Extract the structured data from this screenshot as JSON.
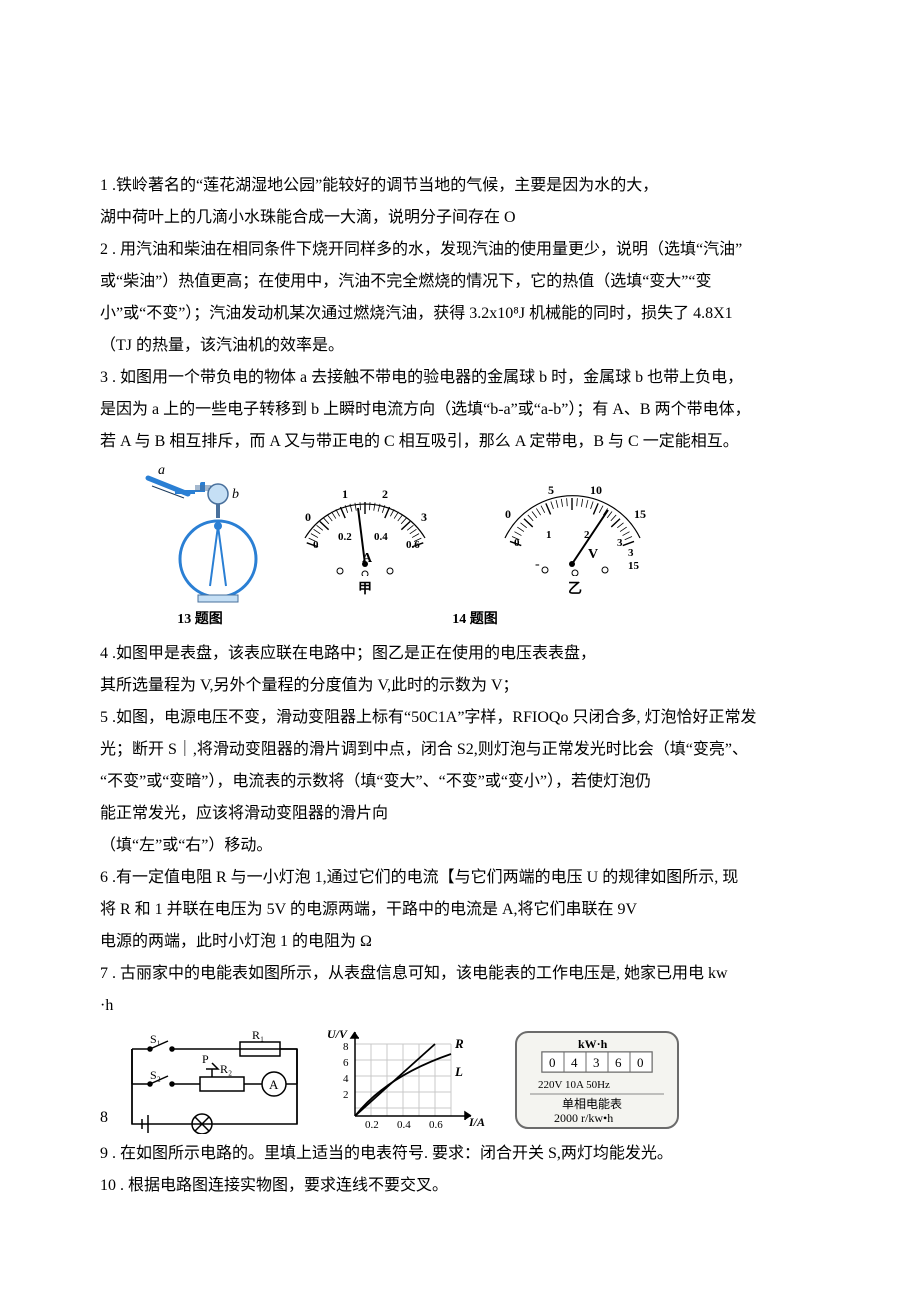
{
  "q1": {
    "line1": "1 .铁岭著名的“莲花湖湿地公园”能较好的调节当地的气候，主要是因为水的大，",
    "line2": "湖中荷叶上的几滴小水珠能合成一大滴，说明分子间存在 O"
  },
  "q2": {
    "line1": "2 . 用汽油和柴油在相同条件下烧开同样多的水，发现汽油的使用量更少，说明（选填“汽油”",
    "line2": "或“柴油”）热值更高；在使用中，汽油不完全燃烧的情况下，它的热值（选填“变大”“变",
    "line3": "小”或“不变”）；汽油发动机某次通过燃烧汽油，获得 3.2x10⁸J 机械能的同时，损失了 4.8X1",
    "line4": "（TJ 的热量，该汽油机的效率是。"
  },
  "q3": {
    "line1": "3 . 如图用一个带负电的物体 a 去接触不带电的验电器的金属球 b 时，金属球 b 也带上负电，",
    "line2": "是因为 a 上的一些电子转移到 b 上瞬时电流方向（选填“b-a”或“a-b”）；有 A、B 两个带电体，",
    "line3": "若 A 与 B 相互排斥，而 A 又与带正电的 C 相互吸引，那么 A 定带电，B 与 C 一定能相互。"
  },
  "fig1": {
    "cap13": "13 题图",
    "cap14": "14 题图",
    "label_jia": "甲",
    "label_yi": "乙",
    "a_label": "a",
    "b_label": "b",
    "ammeter": {
      "scale1": [
        "0",
        "1",
        "2",
        "3"
      ],
      "scale2": [
        "0",
        "0.2",
        "0.4",
        "0.6"
      ],
      "unit": "A"
    },
    "voltmeter": {
      "scale1": [
        "0",
        "5",
        "10",
        "15"
      ],
      "scale2": [
        "0",
        "1",
        "2",
        "3"
      ],
      "unit": "V",
      "side": [
        "3",
        "15"
      ]
    },
    "colors": {
      "blue": "#2a7fd4",
      "outline": "#49709c",
      "body": "#c5dff5",
      "needle": "#1b3a5c"
    }
  },
  "q4": {
    "line1": "4 .如图甲是表盘，该表应联在电路中；图乙是正在使用的电压表表盘，",
    "line2": "其所选量程为 V,另外个量程的分度值为 V,此时的示数为 V；"
  },
  "q5": {
    "line1": "5 .如图，电源电压不变，滑动变阻器上标有“50C1A”字样，RFIOQo 只闭合多, 灯泡恰好正常发",
    "line2": "光；断开 S｜,将滑动变阻器的滑片调到中点，闭合 S2,则灯泡与正常发光时比会（填“变亮”、",
    "line3": "“不变”或“变暗”），电流表的示数将（填“变大”、“不变”或“变小”），若使灯泡仍",
    "line4": "能正常发光，应该将滑动变阻器的滑片向",
    "line5": "（填“左”或“右”）移动。"
  },
  "q6": {
    "line1": "6 .有一定值电阻 R 与一小灯泡 1,通过它们的电流【与它们两端的电压 U 的规律如图所示, 现",
    "line2": "将 R 和 1 并联在电压为 5V 的电源两端，干路中的电流是 A,将它们串联在 9V",
    "line3": "电源的两端，此时小灯泡 1 的电阻为 Ω"
  },
  "q7": {
    "line1": "7 . 古丽家中的电能表如图所示，从表盘信息可知，该电能表的工作电压是, 她家已用电 kw",
    "line2": "·h"
  },
  "q8": {
    "line1": "8"
  },
  "q9": {
    "line1": "9 . 在如图所示电路的。里填上适当的电表符号. 要求：闭合开关 S,两灯均能发光。"
  },
  "q10": {
    "line1": "10 . 根据电路图连接实物图，要求连线不要交叉。"
  },
  "fig2": {
    "circuit": {
      "S1": "S₁",
      "S2": "S₂",
      "R1": "R₁",
      "R2": "R₂",
      "P": "P",
      "A": "A"
    },
    "chart": {
      "ylabel": "U/V",
      "xlabel": "I/A",
      "yvals": [
        "2",
        "4",
        "6",
        "8"
      ],
      "xvals": [
        "0.2",
        "0.4",
        "0.6"
      ],
      "R_label": "R",
      "L_label": "L",
      "colors": {
        "grid": "#c9c9c9",
        "axis": "#000000",
        "line": "#000000"
      }
    },
    "meter": {
      "unit": "kW·h",
      "digits": [
        "0",
        "4",
        "3",
        "6",
        "0"
      ],
      "line1": "220V    10A    50Hz",
      "line2": "单相电能表",
      "line3": "2000 r/kw•h",
      "colors": {
        "border": "#6b6b6b",
        "bg": "#f4f4f0",
        "digitbg": "#ffffff"
      }
    }
  }
}
